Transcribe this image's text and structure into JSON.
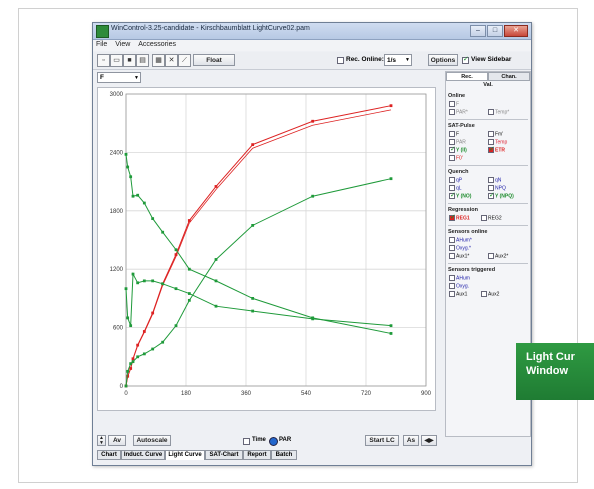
{
  "window": {
    "title": "WinControl-3.25-candidate - Kirschbaumblatt LightCurve02.pam"
  },
  "menu": [
    "File",
    "View",
    "Accessories"
  ],
  "toolbar": {
    "float_label": "Float",
    "rec_online_label": "Rec. Online:",
    "rec_online_value": "1/s",
    "options_label": "Options",
    "view_sidebar_label": "View Sidebar",
    "channel_value": "F"
  },
  "sidebar": {
    "tabs": [
      "Rec.",
      "Chan."
    ],
    "subtab": "Val.",
    "sections": {
      "online": "Online",
      "sat_pulse": "SAT-Pulse",
      "quench": "Quench",
      "regression": "Regression",
      "sensors_online": "Sensors online",
      "sensors_triggered": "Sensors triggered"
    },
    "online_items": [
      "F",
      "PAR*",
      "Temp*"
    ],
    "sat_items": [
      "F",
      "Fm'",
      "PAR",
      "Temp",
      "Y (II)",
      "ETR",
      "F0'"
    ],
    "quench_items": [
      "qP",
      "qN",
      "qL",
      "NPQ",
      "Y (NO)",
      "Y (NPQ)"
    ],
    "regression_items": [
      "REG1",
      "REG2"
    ],
    "sensors_online_items": [
      "AHum*",
      "Oxyg.*",
      "Aux1*",
      "Aux2*"
    ],
    "sensors_triggered_items": [
      "AHum",
      "Oxyg.",
      "Aux1",
      "Aux2"
    ]
  },
  "bottom": {
    "av_label": "Av",
    "autoscale_label": "Autoscale",
    "time_label": "Time",
    "par_label": "PAR",
    "start_lc_label": "Start LC",
    "as_label": "As"
  },
  "tabs": [
    "Chart",
    "Induct. Curve",
    "Light Curve",
    "SAT-Chart",
    "Report",
    "Batch"
  ],
  "badge": {
    "line1": "Light Cur",
    "line2": "Window"
  },
  "colors": {
    "etr": "#dd2222",
    "green": "#1f9a3a",
    "grid": "#d8d8d8"
  },
  "chart_data": {
    "type": "line",
    "x_ticks": [
      "0",
      "180",
      "360",
      "540",
      "720",
      "900"
    ],
    "y_ticks": [
      "0",
      "600",
      "1200",
      "1800",
      "2400",
      "3000"
    ],
    "xlim": [
      0,
      900
    ],
    "ylim": [
      0,
      3000
    ],
    "series": [
      {
        "name": "ETR",
        "color": "#dd2222",
        "x": [
          0,
          5,
          14,
          21,
          35,
          55,
          80,
          110,
          150,
          190,
          270,
          380,
          560,
          795
        ],
        "y": [
          0,
          100,
          180,
          280,
          420,
          560,
          750,
          1050,
          1350,
          1700,
          2050,
          2480,
          2720,
          2880
        ]
      },
      {
        "name": "Y (II)",
        "color": "#1f9a3a",
        "x": [
          0,
          5,
          14,
          21,
          35,
          55,
          80,
          110,
          150,
          190,
          270,
          380,
          560,
          795
        ],
        "y": [
          2380,
          2250,
          2150,
          1950,
          1960,
          1880,
          1720,
          1580,
          1400,
          1200,
          1080,
          900,
          700,
          540
        ]
      },
      {
        "name": "Y (NO)",
        "color": "#1f9a3a",
        "x": [
          0,
          5,
          14,
          21,
          35,
          55,
          80,
          110,
          150,
          190,
          270,
          380,
          560,
          795
        ],
        "y": [
          1000,
          700,
          620,
          1150,
          1060,
          1080,
          1080,
          1050,
          1000,
          950,
          820,
          770,
          690,
          620
        ]
      },
      {
        "name": "Y (NPQ)",
        "color": "#1f9a3a",
        "x": [
          0,
          5,
          14,
          21,
          35,
          55,
          80,
          110,
          150,
          190,
          270,
          380,
          560,
          795
        ],
        "y": [
          0,
          150,
          230,
          250,
          300,
          330,
          380,
          450,
          620,
          880,
          1300,
          1650,
          1950,
          2130
        ]
      }
    ]
  }
}
